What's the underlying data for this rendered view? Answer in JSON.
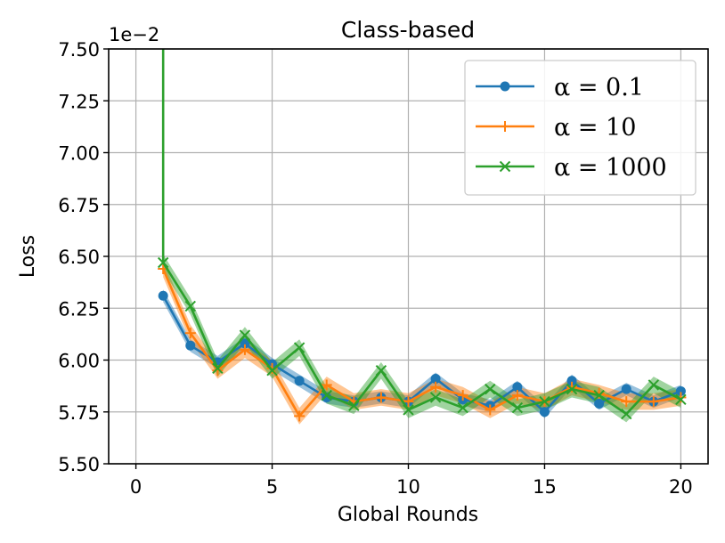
{
  "chart_data": {
    "type": "line",
    "title": "Class-based",
    "xlabel": "Global Rounds",
    "ylabel": "Loss",
    "y_offset_label": "1e−2",
    "xlim": [
      -1,
      21
    ],
    "ylim": [
      5.5,
      7.5
    ],
    "xticks": [
      0,
      5,
      10,
      15,
      20
    ],
    "xtick_labels": [
      "0",
      "5",
      "10",
      "15",
      "20"
    ],
    "yticks": [
      5.5,
      5.75,
      6.0,
      6.25,
      6.5,
      6.75,
      7.0,
      7.25,
      7.5
    ],
    "ytick_labels": [
      "5.50",
      "5.75",
      "6.00",
      "6.25",
      "6.50",
      "6.75",
      "7.00",
      "7.25",
      "7.50"
    ],
    "grid": true,
    "legend_position": "top-right",
    "x": [
      1,
      2,
      3,
      4,
      5,
      6,
      7,
      8,
      9,
      10,
      11,
      12,
      13,
      14,
      15,
      16,
      17,
      18,
      19,
      20
    ],
    "series": [
      {
        "name": "α = 0.1",
        "color": "#1f77b4",
        "marker": "circle",
        "values": [
          6.31,
          6.07,
          5.99,
          6.08,
          5.98,
          5.9,
          5.82,
          5.8,
          5.82,
          5.8,
          5.91,
          5.81,
          5.78,
          5.87,
          5.75,
          5.9,
          5.79,
          5.86,
          5.8,
          5.85
        ],
        "band": 0.03
      },
      {
        "name": "α = 10",
        "color": "#ff7f0e",
        "marker": "plus",
        "values": [
          6.44,
          6.13,
          5.95,
          6.05,
          5.96,
          5.73,
          5.88,
          5.8,
          5.82,
          5.8,
          5.87,
          5.83,
          5.76,
          5.83,
          5.8,
          5.87,
          5.84,
          5.8,
          5.8,
          5.82
        ],
        "band": 0.04
      },
      {
        "name": "α = 1000",
        "color": "#2ca02c",
        "marker": "x",
        "values": [
          6.47,
          6.26,
          5.96,
          6.12,
          5.95,
          6.06,
          5.83,
          5.78,
          5.95,
          5.76,
          5.82,
          5.77,
          5.86,
          5.77,
          5.8,
          5.86,
          5.83,
          5.74,
          5.88,
          5.81
        ],
        "band": 0.04,
        "start_y": 7.5
      }
    ]
  }
}
